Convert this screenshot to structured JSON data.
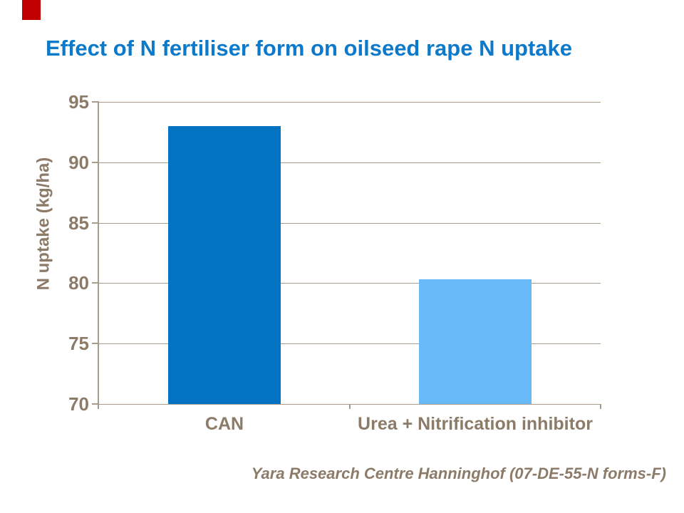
{
  "slide": {
    "title": "Effect of N fertiliser form on oilseed rape N uptake",
    "footer": "Yara Research Centre Hanninghof (07-DE-55-N forms-F)"
  },
  "colors": {
    "title": "#0C79CA",
    "accent_square": "#C00000",
    "axis_text": "#8C7B68",
    "gridline": "#A79C8E",
    "bar_can": "#0272C3",
    "bar_urea": "#67BAF7"
  },
  "chart_data": {
    "type": "bar",
    "title": "Effect of N fertiliser form on oilseed rape N uptake",
    "categories": [
      "CAN",
      "Urea + Nitrification inhibitor"
    ],
    "values": [
      93,
      80.3
    ],
    "series_colors": [
      "#0272C3",
      "#67BAF7"
    ],
    "xlabel": "",
    "ylabel": "N  uptake (kg/ha)",
    "ylim": [
      70,
      95
    ],
    "yticks": [
      95,
      90,
      85,
      80,
      75,
      70
    ],
    "grid": "horizontal",
    "legend": "none"
  }
}
